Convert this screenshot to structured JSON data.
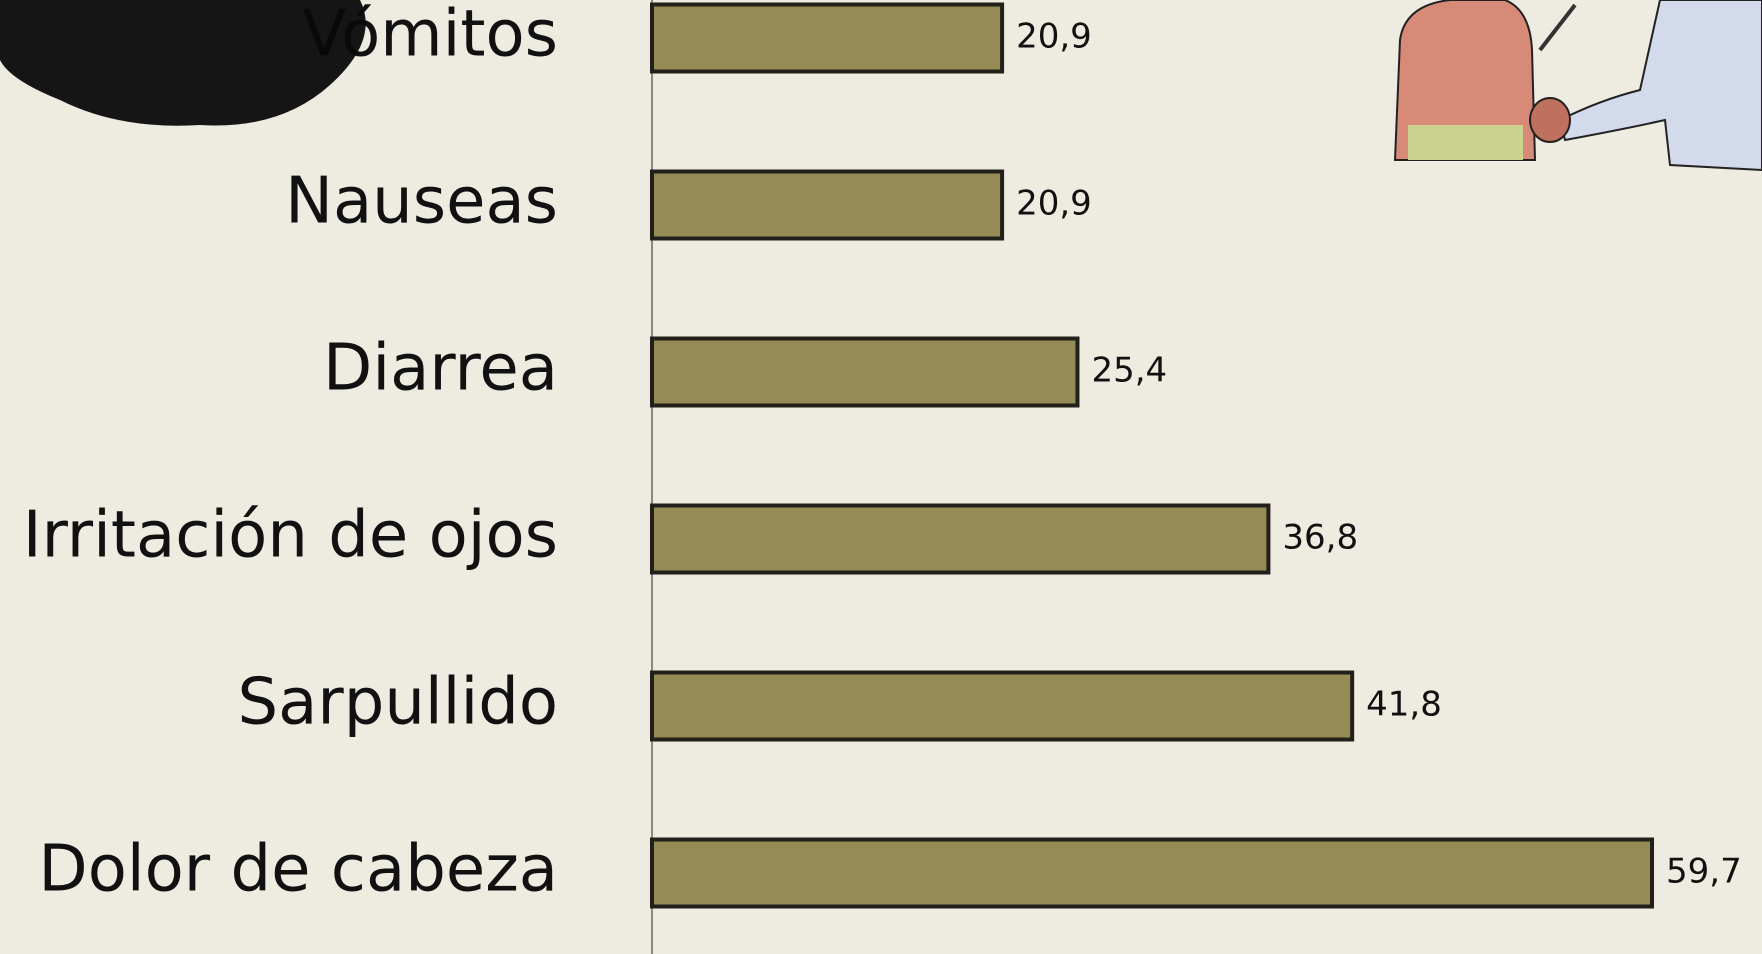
{
  "chart_data": {
    "type": "bar",
    "orientation": "horizontal",
    "categories": [
      "Vómitos",
      "Nauseas",
      "Diarrea",
      "Irritación de ojos",
      "Sarpullido",
      "Dolor de cabeza"
    ],
    "values": [
      20.9,
      20.9,
      25.4,
      36.8,
      41.8,
      59.7
    ],
    "value_labels": [
      "20,9",
      "20,9",
      "25,4",
      "36,8",
      "41,8",
      "59,7"
    ],
    "color": "#958c55"
  }
}
